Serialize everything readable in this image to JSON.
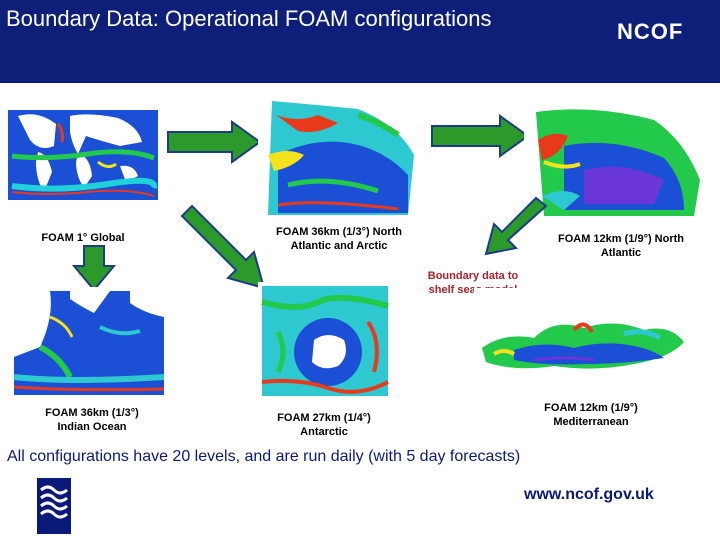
{
  "header": {
    "title": "Boundary Data: Operational FOAM configurations",
    "logo": "NCOF",
    "background": "#0e1f7a"
  },
  "maps": {
    "global": "FOAM 1° Global",
    "north_atlantic_arctic": "FOAM 36km (1/3°) North Atlantic and Arctic",
    "north_atlantic_12": "FOAM 12km (1/9°) North Atlantic",
    "indian_ocean": "FOAM 36km (1/3°) Indian Ocean",
    "antarctic": "FOAM 27km (1/4°) Antarctic",
    "mediterranean": "FOAM 12km (1/9°) Mediterranean"
  },
  "boundary_note": "Boundary data to shelf seas model",
  "footer": {
    "summary": "All configurations have 20 levels, and are run daily (with 5 day forecasts)",
    "url": "www.ncof.gov.uk",
    "met_office_logo": "Met Office"
  },
  "colors": {
    "arrow_fill": "#2b9a2b",
    "arrow_border": "#1e3a8a",
    "footer_text": "#0b1a78",
    "note_text": "#b0202a"
  }
}
